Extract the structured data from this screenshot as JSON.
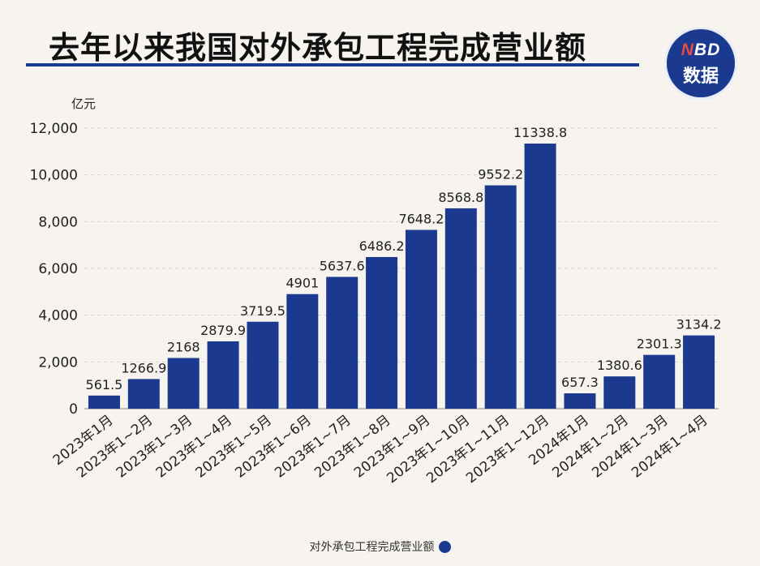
{
  "header": {
    "title": "去年以来我国对外承包工程完成营业额",
    "badge_line1_a": "N",
    "badge_line1_b": "BD",
    "badge_line2": "数据"
  },
  "chart_data": {
    "type": "bar",
    "title": "去年以来我国对外承包工程完成营业额",
    "ylabel": "亿元",
    "xlabel": "",
    "ylim": [
      0,
      12000
    ],
    "yticks": [
      0,
      2000,
      4000,
      6000,
      8000,
      10000,
      12000
    ],
    "ytick_labels": [
      "0",
      "2,000",
      "4,000",
      "6,000",
      "8,000",
      "10,000",
      "12,000"
    ],
    "grid": true,
    "legend_position": "bottom-center",
    "categories": [
      "2023年1月",
      "2023年1~2月",
      "2023年1~3月",
      "2023年1~4月",
      "2023年1~5月",
      "2023年1~6月",
      "2023年1~7月",
      "2023年1~8月",
      "2023年1~9月",
      "2023年1~10月",
      "2023年1~11月",
      "2023年1~12月",
      "2024年1月",
      "2024年1~2月",
      "2024年1~3月",
      "2024年1~4月"
    ],
    "series": [
      {
        "name": "对外承包工程完成营业额",
        "color": "#1b3a8f",
        "values": [
          561.5,
          1266.9,
          2168,
          2879.9,
          3719.5,
          4901,
          5637.6,
          6486.2,
          7648.2,
          8568.8,
          9552.2,
          11338.8,
          657.3,
          1380.6,
          2301.3,
          3134.2
        ],
        "labels": [
          "561.5",
          "1266.9",
          "2168",
          "2879.9",
          "3719.5",
          "4901",
          "5637.6",
          "6486.2",
          "7648.2",
          "8568.8",
          "9552.2",
          "11338.8",
          "657.3",
          "1380.6",
          "2301.3",
          "3134.2"
        ]
      }
    ]
  }
}
